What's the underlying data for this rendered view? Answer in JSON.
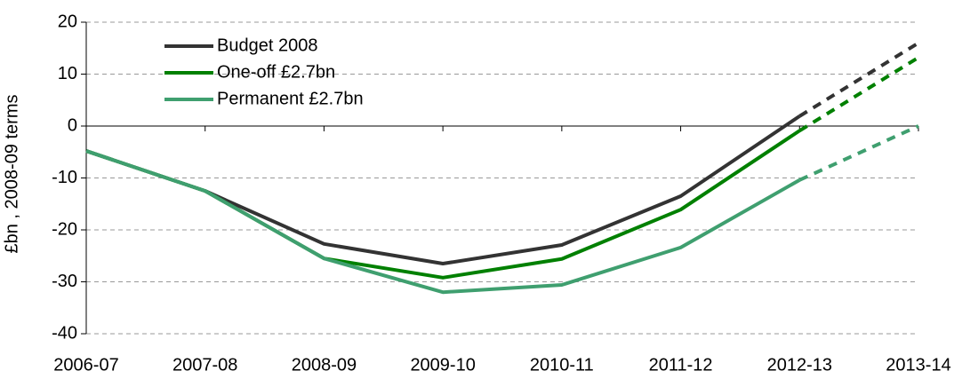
{
  "chart_data": {
    "type": "line",
    "ylabel": "£bn , 2008-09 terms",
    "categories": [
      "2006-07",
      "2007-08",
      "2008-09",
      "2009-10",
      "2010-11",
      "2011-12",
      "2012-13",
      "2013-14"
    ],
    "series": [
      {
        "name": "Budget 2008",
        "color": "#333333",
        "values": [
          -4.8,
          -12.5,
          -22.7,
          -26.5,
          -22.9,
          -13.5,
          1.9,
          16
        ]
      },
      {
        "name": "One-off £2.7bn",
        "color": "#008000",
        "values": [
          -4.8,
          -12.5,
          -25.5,
          -29.2,
          -25.6,
          -16.1,
          -0.9,
          13.2
        ]
      },
      {
        "name": "Permanent £2.7bn",
        "color": "#3f9f6f",
        "values": [
          -4.8,
          -12.5,
          -25.5,
          -32,
          -30.6,
          -23.4,
          -10.4,
          0
        ]
      }
    ],
    "dashed_from_index": 6,
    "ylim": [
      -40,
      20
    ],
    "yticks": [
      -40,
      -30,
      -20,
      -10,
      0,
      10,
      20
    ],
    "grid": true,
    "legend": "top-left"
  }
}
